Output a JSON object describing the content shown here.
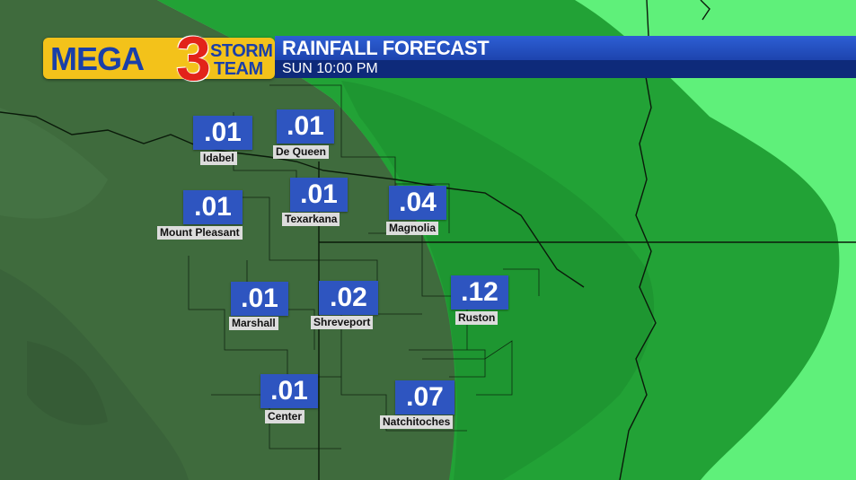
{
  "header": {
    "logo": {
      "mega": "MEGA",
      "number": "3",
      "storm": "STORM",
      "team": "TEAM"
    },
    "title": "RAINFALL FORECAST",
    "subtitle": "SUN 10:00 PM"
  },
  "colors": {
    "terrain": "#3f6b3d",
    "rain_light": "#5ff07a",
    "rain_medium": "#22a236",
    "rain_dark": "#157a26",
    "value_box": "#2e55c0",
    "title_bar": "#2a59d0",
    "subtitle_bar": "#0e2a7a",
    "logo_yellow": "#f3c21a"
  },
  "locations": [
    {
      "name": "Idabel",
      "value": ".01"
    },
    {
      "name": "De Queen",
      "value": ".01"
    },
    {
      "name": "Mount Pleasant",
      "value": ".01"
    },
    {
      "name": "Texarkana",
      "value": ".01"
    },
    {
      "name": "Magnolia",
      "value": ".04"
    },
    {
      "name": "Marshall",
      "value": ".01"
    },
    {
      "name": "Shreveport",
      "value": ".02"
    },
    {
      "name": "Ruston",
      "value": ".12"
    },
    {
      "name": "Center",
      "value": ".01"
    },
    {
      "name": "Natchitoches",
      "value": ".07"
    }
  ]
}
